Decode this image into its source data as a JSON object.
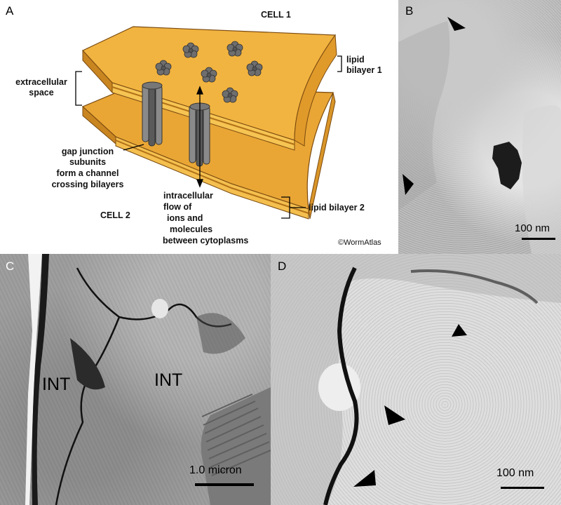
{
  "panels": {
    "a": {
      "letter": "A",
      "cell1": "CELL 1",
      "cell2": "CELL 2",
      "lipid_bilayer_1": [
        "lipid",
        "bilayer 1"
      ],
      "lipid_bilayer_2": "lipid bilayer 2",
      "extracellular_space": [
        "extracellular",
        "space"
      ],
      "gap_junction": [
        "gap junction",
        "subunits",
        "form a channel",
        "crossing bilayers"
      ],
      "intracellular_flow": [
        "intracellular",
        "flow of",
        "ions and",
        "molecules",
        "between cytoplasms"
      ],
      "copyright": "©WormAtlas"
    },
    "b": {
      "letter": "B",
      "scale": "100 nm"
    },
    "c": {
      "letter": "C",
      "label_left": "INT",
      "label_right": "INT",
      "scale": "1.0 micron"
    },
    "d": {
      "letter": "D",
      "scale": "100 nm"
    }
  },
  "colors": {
    "membrane_light": "#f6c452",
    "membrane_mid": "#e7a431",
    "membrane_dark": "#c98520",
    "protein": "#6e6e6e"
  }
}
